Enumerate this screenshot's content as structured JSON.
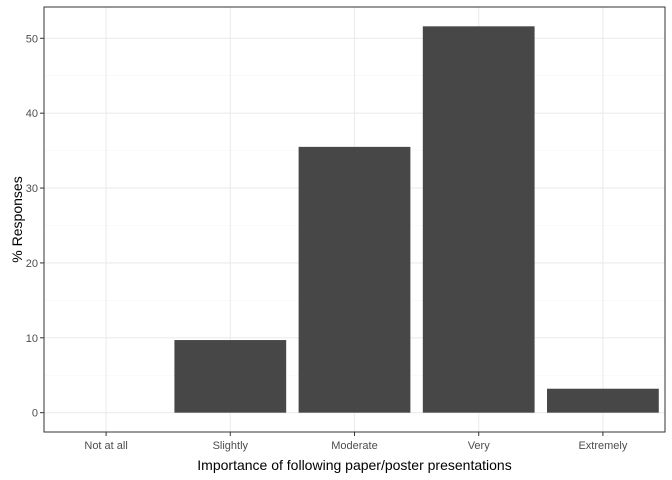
{
  "chart_data": {
    "type": "bar",
    "title": "",
    "xlabel": "Importance of following paper/poster presentations",
    "ylabel": "% Responses",
    "categories": [
      "Not at all",
      "Slightly",
      "Moderate",
      "Very",
      "Extremely"
    ],
    "values": [
      0,
      9.7,
      35.5,
      51.6,
      3.2
    ],
    "ylim": [
      -2.58,
      54.18
    ],
    "yticks": [
      0,
      10,
      20,
      30,
      40,
      50
    ],
    "grid": true,
    "legend": "none",
    "colors": {
      "bar": "#474747",
      "grid_major": "#ebebeb",
      "grid_minor": "#f5f5f5",
      "panel_border": "#333333",
      "tick": "#333333"
    }
  }
}
